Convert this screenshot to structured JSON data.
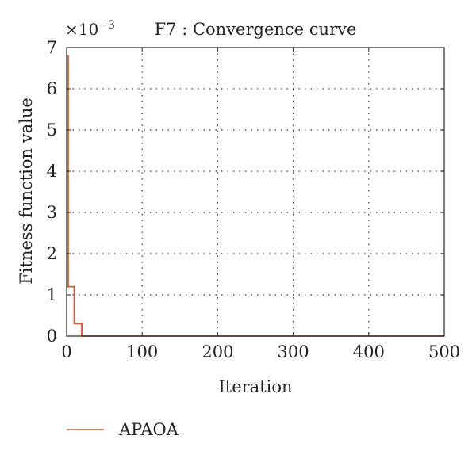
{
  "chart_data": {
    "type": "line",
    "title": "F7 : Convergence curve",
    "xlabel": "Iteration",
    "ylabel": "Fitness function value",
    "y_exponent": "×10",
    "y_exponent_power": "−3",
    "xlim": [
      0,
      500
    ],
    "ylim": [
      0,
      7
    ],
    "xticks": [
      0,
      100,
      200,
      300,
      400,
      500
    ],
    "yticks": [
      0,
      1,
      2,
      3,
      4,
      5,
      6,
      7
    ],
    "grid": true,
    "legend_position": "bottom-left",
    "series": [
      {
        "name": "APAOA",
        "color": "#d05a2c",
        "x": [
          1,
          2,
          2,
          10,
          10,
          20,
          20,
          500
        ],
        "y": [
          6.8,
          6.8,
          1.2,
          1.2,
          0.3,
          0.3,
          0.0,
          0.0
        ]
      }
    ]
  }
}
